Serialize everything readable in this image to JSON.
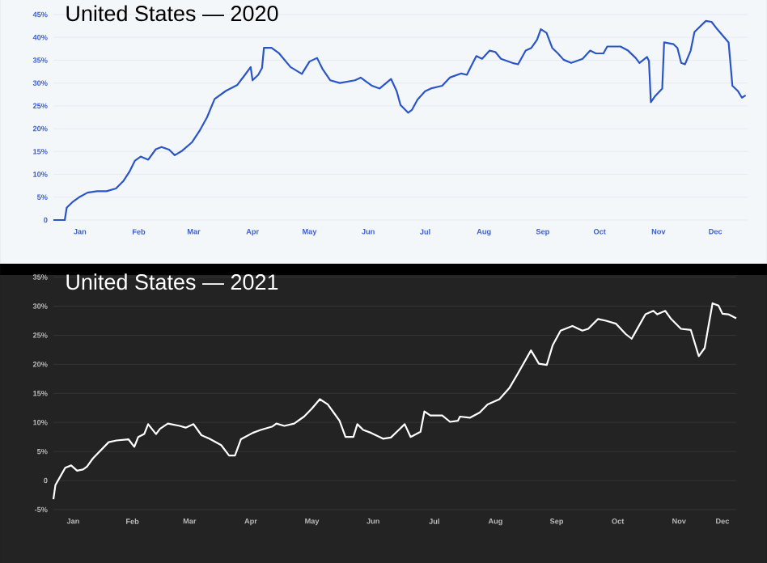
{
  "chart_data": [
    {
      "type": "line",
      "title": "United States — 2020",
      "x": [
        "2020-01-01",
        "2020-01-07",
        "2020-01-08",
        "2020-01-11",
        "2020-01-15",
        "2020-01-19",
        "2020-01-24",
        "2020-01-29",
        "2020-02-03",
        "2020-02-07",
        "2020-02-10",
        "2020-02-13",
        "2020-02-16",
        "2020-02-20",
        "2020-02-24",
        "2020-02-27",
        "2020-03-02",
        "2020-03-05",
        "2020-03-09",
        "2020-03-14",
        "2020-03-18",
        "2020-03-22",
        "2020-03-26",
        "2020-04-01",
        "2020-04-07",
        "2020-04-11",
        "2020-04-14",
        "2020-04-15",
        "2020-04-18",
        "2020-04-20",
        "2020-04-21",
        "2020-04-25",
        "2020-04-29",
        "2020-05-05",
        "2020-05-11",
        "2020-05-15",
        "2020-05-19",
        "2020-05-22",
        "2020-05-26",
        "2020-05-31",
        "2020-06-08",
        "2020-06-11",
        "2020-06-17",
        "2020-06-21",
        "2020-06-27",
        "2020-06-30",
        "2020-07-02",
        "2020-07-06",
        "2020-07-08",
        "2020-07-11",
        "2020-07-15",
        "2020-07-18",
        "2020-07-24",
        "2020-07-28",
        "2020-08-03",
        "2020-08-06",
        "2020-08-08",
        "2020-08-11",
        "2020-08-14",
        "2020-08-18",
        "2020-08-21",
        "2020-08-24",
        "2020-08-30",
        "2020-09-02",
        "2020-09-06",
        "2020-09-09",
        "2020-09-12",
        "2020-09-14",
        "2020-09-17",
        "2020-09-20",
        "2020-09-23",
        "2020-09-26",
        "2020-09-30",
        "2020-10-06",
        "2020-10-10",
        "2020-10-13",
        "2020-10-17",
        "2020-10-19",
        "2020-10-26",
        "2020-10-30",
        "2020-11-03",
        "2020-11-05",
        "2020-11-09",
        "2020-11-10",
        "2020-11-11",
        "2020-11-13",
        "2020-11-17",
        "2020-11-18",
        "2020-11-23",
        "2020-11-25",
        "2020-11-27",
        "2020-11-29",
        "2020-12-02",
        "2020-12-04",
        "2020-12-07",
        "2020-12-10",
        "2020-12-13",
        "2020-12-16",
        "2020-12-22",
        "2020-12-24",
        "2020-12-27",
        "2020-12-29",
        "2020-12-31"
      ],
      "series": [
        {
          "color": "#2a55c9",
          "values": [
            0,
            0,
            2.7,
            3.9,
            5.1,
            6.0,
            6.3,
            6.3,
            6.9,
            8.6,
            10.5,
            13.0,
            13.9,
            13.2,
            15.5,
            16.0,
            15.4,
            14.2,
            15.2,
            17.0,
            19.5,
            22.5,
            26.5,
            28.3,
            29.6,
            31.8,
            33.5,
            30.6,
            31.8,
            33.3,
            37.7,
            37.7,
            36.5,
            33.5,
            32.0,
            34.7,
            35.5,
            33.0,
            30.6,
            30.0,
            30.6,
            31.2,
            29.4,
            28.8,
            30.9,
            28.2,
            25.2,
            23.5,
            24.1,
            26.4,
            28.2,
            28.8,
            29.4,
            31.2,
            32.1,
            31.8,
            33.5,
            35.9,
            35.3,
            37.1,
            36.8,
            35.3,
            34.4,
            34.1,
            37.1,
            37.7,
            39.5,
            41.8,
            41.0,
            37.7,
            36.5,
            35.1,
            34.4,
            35.3,
            37.1,
            36.5,
            36.5,
            38.0,
            38.0,
            37.1,
            35.5,
            34.4,
            35.7,
            34.8,
            25.8,
            27.0,
            28.8,
            38.9,
            38.5,
            37.7,
            34.4,
            34.1,
            37.1,
            41.2,
            42.4,
            43.6,
            43.4,
            41.8,
            38.9,
            29.4,
            28.2,
            26.8,
            27.3
          ]
        }
      ],
      "xlim": [
        "2020-01-01",
        "2021-01-01"
      ],
      "xticks": [
        {
          "value": "2020-01-15",
          "label": "Jan"
        },
        {
          "value": "2020-02-15",
          "label": "Feb"
        },
        {
          "value": "2020-03-15",
          "label": "Mar"
        },
        {
          "value": "2020-04-15",
          "label": "Apr"
        },
        {
          "value": "2020-05-15",
          "label": "May"
        },
        {
          "value": "2020-06-15",
          "label": "Jun"
        },
        {
          "value": "2020-07-15",
          "label": "Jul"
        },
        {
          "value": "2020-08-15",
          "label": "Aug"
        },
        {
          "value": "2020-09-15",
          "label": "Sep"
        },
        {
          "value": "2020-10-15",
          "label": "Oct"
        },
        {
          "value": "2020-11-15",
          "label": "Nov"
        },
        {
          "value": "2020-12-15",
          "label": "Dec"
        }
      ],
      "ylim": [
        0,
        45
      ],
      "yticks": [
        0,
        {
          "value": 5,
          "label": "5%"
        },
        {
          "value": 10,
          "label": "10%"
        },
        {
          "value": 15,
          "label": "15%"
        },
        {
          "value": 20,
          "label": "20%"
        },
        {
          "value": 25,
          "label": "25%"
        },
        {
          "value": 30,
          "label": "30%"
        },
        {
          "value": 35,
          "label": "35%"
        },
        {
          "value": 40,
          "label": "40%"
        },
        {
          "value": 45,
          "label": "45%"
        }
      ],
      "grid": "y"
    },
    {
      "type": "line",
      "title": "United States — 2021",
      "x": [
        "2021-01-05",
        "2021-01-06",
        "2021-01-09",
        "2021-01-11",
        "2021-01-14",
        "2021-01-17",
        "2021-01-20",
        "2021-01-22",
        "2021-01-25",
        "2021-01-29",
        "2021-02-02",
        "2021-02-06",
        "2021-02-12",
        "2021-02-15",
        "2021-02-17",
        "2021-02-20",
        "2021-02-22",
        "2021-02-26",
        "2021-02-28",
        "2021-03-04",
        "2021-03-10",
        "2021-03-13",
        "2021-03-17",
        "2021-03-21",
        "2021-03-25",
        "2021-03-31",
        "2021-04-04",
        "2021-04-07",
        "2021-04-10",
        "2021-04-16",
        "2021-04-20",
        "2021-04-26",
        "2021-04-28",
        "2021-05-02",
        "2021-05-07",
        "2021-05-12",
        "2021-05-16",
        "2021-05-20",
        "2021-05-24",
        "2021-05-27",
        "2021-05-30",
        "2021-06-02",
        "2021-06-06",
        "2021-06-08",
        "2021-06-11",
        "2021-06-15",
        "2021-06-21",
        "2021-06-25",
        "2021-06-29",
        "2021-07-02",
        "2021-07-05",
        "2021-07-10",
        "2021-07-12",
        "2021-07-15",
        "2021-07-21",
        "2021-07-25",
        "2021-07-29",
        "2021-07-30",
        "2021-08-04",
        "2021-08-09",
        "2021-08-13",
        "2021-08-19",
        "2021-08-24",
        "2021-08-28",
        "2021-09-04",
        "2021-09-08",
        "2021-09-12",
        "2021-09-15",
        "2021-09-19",
        "2021-09-25",
        "2021-09-30",
        "2021-10-03",
        "2021-10-08",
        "2021-10-12",
        "2021-10-17",
        "2021-10-22",
        "2021-10-25",
        "2021-10-27",
        "2021-11-01",
        "2021-11-05",
        "2021-11-07",
        "2021-11-11",
        "2021-11-14",
        "2021-11-19",
        "2021-11-24",
        "2021-11-28",
        "2021-12-01",
        "2021-12-03",
        "2021-12-05",
        "2021-12-08",
        "2021-12-10",
        "2021-12-13",
        "2021-12-17"
      ],
      "series": [
        {
          "color": "#ffffff",
          "values": [
            -3.2,
            -0.8,
            1.0,
            2.2,
            2.6,
            1.7,
            1.9,
            2.4,
            3.8,
            5.2,
            6.6,
            6.9,
            7.1,
            5.8,
            7.5,
            8.0,
            9.7,
            8.0,
            8.9,
            9.8,
            9.4,
            9.1,
            9.7,
            7.8,
            7.2,
            6.1,
            4.3,
            4.3,
            7.1,
            8.2,
            8.7,
            9.3,
            9.8,
            9.4,
            9.8,
            11.0,
            12.4,
            14.0,
            13.1,
            11.7,
            10.3,
            7.5,
            7.5,
            9.7,
            8.7,
            8.2,
            7.2,
            7.4,
            8.7,
            9.7,
            7.5,
            8.4,
            11.9,
            11.2,
            11.2,
            10.1,
            10.3,
            11.0,
            10.8,
            11.7,
            13.1,
            14.0,
            15.9,
            18.2,
            22.4,
            20.1,
            19.9,
            23.3,
            25.8,
            26.6,
            25.8,
            26.1,
            27.8,
            27.5,
            27.0,
            25.2,
            24.4,
            25.6,
            28.6,
            29.2,
            28.6,
            29.2,
            27.8,
            26.1,
            25.9,
            21.4,
            22.8,
            26.7,
            30.5,
            30.1,
            28.7,
            28.6,
            27.9
          ]
        }
      ],
      "xlim": [
        "2021-01-05",
        "2021-12-17"
      ],
      "xticks": [
        {
          "value": "2021-01-15",
          "label": "Jan"
        },
        {
          "value": "2021-02-14",
          "label": "Feb"
        },
        {
          "value": "2021-03-15",
          "label": "Mar"
        },
        {
          "value": "2021-04-15",
          "label": "Apr"
        },
        {
          "value": "2021-05-16",
          "label": "May"
        },
        {
          "value": "2021-06-16",
          "label": "Jun"
        },
        {
          "value": "2021-07-17",
          "label": "Jul"
        },
        {
          "value": "2021-08-17",
          "label": "Aug"
        },
        {
          "value": "2021-09-17",
          "label": "Sep"
        },
        {
          "value": "2021-10-18",
          "label": "Oct"
        },
        {
          "value": "2021-11-18",
          "label": "Nov"
        },
        {
          "value": "2021-12-10",
          "label": "Dec"
        }
      ],
      "ylim": [
        -5,
        35
      ],
      "yticks": [
        {
          "value": -5,
          "label": "-5%"
        },
        0,
        {
          "value": 5,
          "label": "5%"
        },
        {
          "value": 10,
          "label": "10%"
        },
        {
          "value": 15,
          "label": "15%"
        },
        {
          "value": 20,
          "label": "20%"
        },
        {
          "value": 25,
          "label": "25%"
        },
        {
          "value": 30,
          "label": "30%"
        },
        {
          "value": 35,
          "label": "35%"
        }
      ],
      "grid": "y"
    }
  ]
}
